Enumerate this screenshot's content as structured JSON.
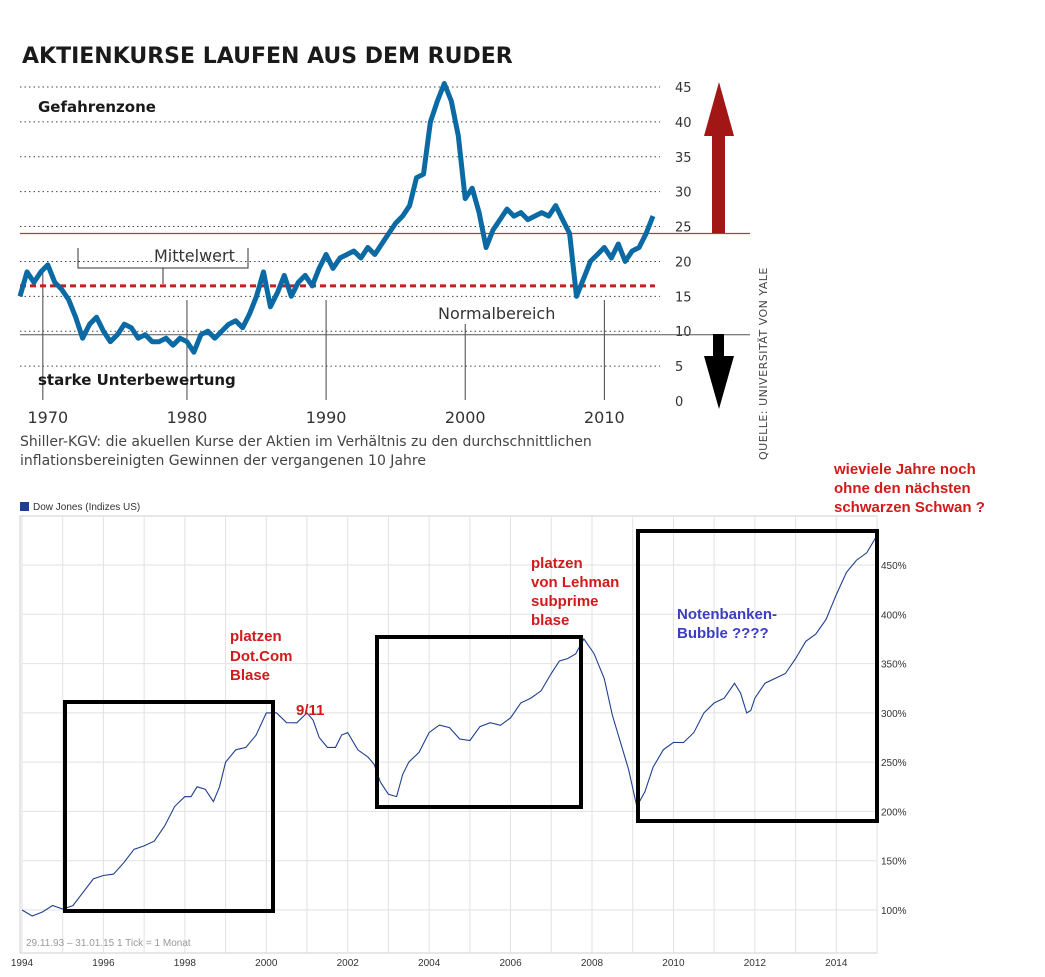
{
  "chart_data": [
    {
      "type": "line",
      "title": "AKTIENKURSE LAUFEN AUS DEM RUDER",
      "caption": [
        "Shiller-KGV: die akuellen Kurse der Aktien im Verhältnis zu den durchschnittlichen",
        "inflationsbereinigten Gewinnen der vergangenen 10 Jahre"
      ],
      "source": "QUELLE: UNIVERSITÄT VON YALE",
      "xlim": [
        1968,
        2014
      ],
      "ylim": [
        0,
        46
      ],
      "y_ticks": [
        "45",
        "40",
        "35",
        "30",
        "25",
        "20",
        "15",
        "10",
        "5",
        "0"
      ],
      "x_ticks": [
        "1970",
        "1980",
        "1990",
        "2000",
        "2010"
      ],
      "grid": "dotted horizontal",
      "annotations": {
        "danger_zone": "Gefahrenzone",
        "mean_label": "Mittelwert",
        "normal_label": "Normalbereich",
        "undervaluation": "starke Unterbewertung"
      },
      "mean_value": 16.5,
      "upper_line": 24,
      "lower_line": 9.5,
      "colors": {
        "series": "#0b6aa3",
        "mean": "#c21f1f",
        "upper_line": "#c0392b",
        "arrow_up": "#a31616",
        "arrow_down": "#000000"
      },
      "series": [
        {
          "x": [
            1968.0,
            1968.5,
            1969.0,
            1969.5,
            1970.0,
            1970.5,
            1971.0,
            1971.5,
            1972.0,
            1972.5,
            1973.0,
            1973.5,
            1974.0,
            1974.5,
            1975.0,
            1975.5,
            1976.0,
            1976.5,
            1977.0,
            1977.5,
            1978.0,
            1978.5,
            1979.0,
            1979.5,
            1980.0,
            1980.5,
            1981.0,
            1981.5,
            1982.0,
            1982.5,
            1983.0,
            1983.5,
            1984.0,
            1984.5,
            1985.0,
            1985.5,
            1986.0,
            1986.5,
            1987.0,
            1987.5,
            1988.0,
            1988.5,
            1989.0,
            1989.5,
            1990.0,
            1990.5,
            1991.0,
            1991.5,
            1992.0,
            1992.5,
            1993.0,
            1993.5,
            1994.0,
            1994.5,
            1995.0,
            1995.5,
            1996.0,
            1996.5,
            1997.0,
            1997.5,
            1998.0,
            1998.5,
            1999.0,
            1999.5,
            2000.0,
            2000.5,
            2001.0,
            2001.5,
            2002.0,
            2002.5,
            2003.0,
            2003.5,
            2004.0,
            2004.5,
            2005.0,
            2005.5,
            2006.0,
            2006.5,
            2007.0,
            2007.5,
            2008.0,
            2008.5,
            2009.0,
            2009.5,
            2010.0,
            2010.5,
            2011.0,
            2011.5,
            2012.0,
            2012.5,
            2013.0,
            2013.5
          ],
          "y": [
            15.0,
            18.5,
            17.0,
            18.5,
            19.5,
            17.0,
            16.0,
            14.5,
            12.0,
            9.0,
            11.0,
            12.0,
            10.0,
            8.5,
            9.5,
            11.0,
            10.5,
            9.0,
            9.5,
            8.5,
            8.5,
            9.0,
            8.0,
            9.0,
            8.5,
            7.0,
            9.5,
            10.0,
            9.0,
            10.0,
            11.0,
            11.5,
            10.5,
            12.5,
            15.0,
            18.5,
            13.5,
            15.5,
            18.0,
            15.0,
            17.0,
            18.0,
            16.5,
            19.0,
            21.0,
            19.0,
            20.5,
            21.0,
            21.5,
            20.5,
            22.0,
            21.0,
            22.5,
            24.0,
            25.5,
            26.5,
            28.0,
            32.0,
            32.5,
            40.0,
            43.0,
            45.5,
            43.0,
            38.0,
            29.0,
            30.5,
            27.0,
            22.0,
            24.5,
            26.0,
            27.5,
            26.5,
            27.0,
            26.0,
            26.5,
            27.0,
            26.5,
            28.0,
            26.0,
            24.0,
            15.0,
            17.5,
            20.0,
            21.0,
            22.0,
            20.5,
            22.5,
            20.0,
            21.5,
            22.0,
            24.0,
            26.5
          ]
        }
      ]
    },
    {
      "type": "line",
      "legend": "Dow Jones (Indizes US)",
      "footer": "29.11.93 – 31.01.15   1 Tick = 1 Monat",
      "xlim": [
        1994,
        2015
      ],
      "ylim": [
        80,
        500
      ],
      "y_ticks": [
        "100%",
        "150%",
        "200%",
        "250%",
        "300%",
        "350%",
        "400%",
        "450%"
      ],
      "x_ticks": [
        "1994",
        "1996",
        "1998",
        "2000",
        "2002",
        "2004",
        "2006",
        "2008",
        "2010",
        "2012",
        "2014"
      ],
      "grid": "on",
      "colors": {
        "series": "#1f3f8f",
        "annotation_red": "#d11a1a",
        "annotation_blue": "#3d3dc2"
      },
      "annotations": [
        [
          "platzen",
          "Dot.Com",
          "Blase"
        ],
        [
          "9/11"
        ],
        [
          "platzen",
          "von Lehman",
          "subprime",
          "blase"
        ],
        [
          "Notenbanken-",
          "Bubble ????"
        ],
        [
          "wieviele Jahre noch",
          "ohne den nächsten",
          "schwarzen Schwan ?"
        ]
      ],
      "series": [
        {
          "name": "Dow Jones (Indizes US)",
          "x": [
            1994.0,
            1994.5,
            1995.0,
            1995.5,
            1996.0,
            1996.5,
            1997.0,
            1997.5,
            1998.0,
            1998.3,
            1998.7,
            1999.0,
            1999.5,
            2000.0,
            2000.5,
            2001.0,
            2001.3,
            2001.7,
            2002.0,
            2002.5,
            2002.8,
            2003.2,
            2003.5,
            2004.0,
            2004.5,
            2005.0,
            2005.5,
            2006.0,
            2006.5,
            2007.0,
            2007.4,
            2007.8,
            2008.3,
            2008.7,
            2009.1,
            2009.5,
            2010.0,
            2010.5,
            2011.0,
            2011.5,
            2011.8,
            2012.0,
            2012.5,
            2013.0,
            2013.5,
            2014.0,
            2014.5,
            2015.0
          ],
          "y": [
            100,
            98,
            101,
            118,
            135,
            148,
            165,
            185,
            215,
            225,
            210,
            250,
            265,
            300,
            290,
            300,
            275,
            265,
            280,
            255,
            230,
            215,
            250,
            280,
            285,
            272,
            290,
            295,
            315,
            340,
            355,
            375,
            335,
            270,
            205,
            245,
            270,
            280,
            310,
            330,
            300,
            315,
            335,
            355,
            380,
            420,
            455,
            480
          ]
        }
      ]
    }
  ]
}
